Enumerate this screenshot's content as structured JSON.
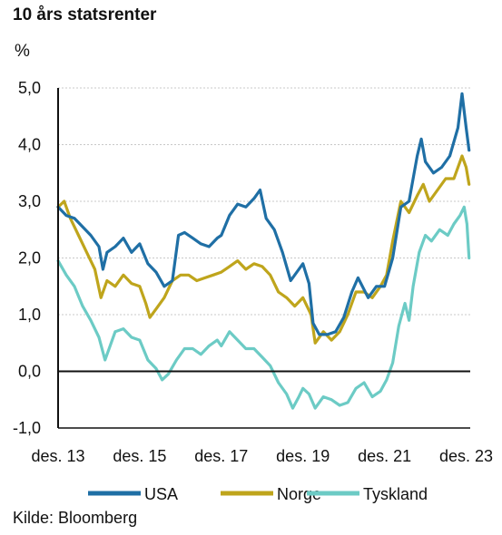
{
  "chart_data": {
    "type": "line",
    "title": "10 års statsrenter",
    "ylabel": "%",
    "xlabel": "",
    "ylim": [
      -1.0,
      5.0
    ],
    "yticks": [
      "5,0",
      "4,0",
      "3,0",
      "2,0",
      "1,0",
      "0,0",
      "-1,0"
    ],
    "ytick_values": [
      5,
      4,
      3,
      2,
      1,
      0,
      -1
    ],
    "xlim": [
      2013.9,
      2024.0
    ],
    "xticks": [
      "des. 13",
      "des. 15",
      "des. 17",
      "des. 19",
      "des. 21",
      "des. 23"
    ],
    "xtick_values": [
      2013.9,
      2015.9,
      2017.9,
      2019.9,
      2021.9,
      2023.9
    ],
    "grid": true,
    "legend_position": "bottom",
    "series": [
      {
        "name": "USA",
        "color": "#1f6fa5",
        "points": [
          [
            2013.9,
            2.9
          ],
          [
            2014.1,
            2.75
          ],
          [
            2014.3,
            2.7
          ],
          [
            2014.5,
            2.55
          ],
          [
            2014.7,
            2.4
          ],
          [
            2014.9,
            2.2
          ],
          [
            2015.0,
            1.8
          ],
          [
            2015.1,
            2.1
          ],
          [
            2015.3,
            2.2
          ],
          [
            2015.5,
            2.35
          ],
          [
            2015.7,
            2.1
          ],
          [
            2015.9,
            2.25
          ],
          [
            2016.1,
            1.9
          ],
          [
            2016.3,
            1.75
          ],
          [
            2016.5,
            1.5
          ],
          [
            2016.7,
            1.6
          ],
          [
            2016.85,
            2.4
          ],
          [
            2017.0,
            2.45
          ],
          [
            2017.2,
            2.35
          ],
          [
            2017.4,
            2.25
          ],
          [
            2017.6,
            2.2
          ],
          [
            2017.8,
            2.35
          ],
          [
            2017.9,
            2.4
          ],
          [
            2018.1,
            2.75
          ],
          [
            2018.3,
            2.95
          ],
          [
            2018.5,
            2.9
          ],
          [
            2018.7,
            3.05
          ],
          [
            2018.85,
            3.2
          ],
          [
            2019.0,
            2.7
          ],
          [
            2019.2,
            2.5
          ],
          [
            2019.4,
            2.1
          ],
          [
            2019.6,
            1.6
          ],
          [
            2019.8,
            1.8
          ],
          [
            2019.9,
            1.9
          ],
          [
            2020.05,
            1.55
          ],
          [
            2020.15,
            0.85
          ],
          [
            2020.3,
            0.65
          ],
          [
            2020.5,
            0.65
          ],
          [
            2020.7,
            0.7
          ],
          [
            2020.9,
            0.95
          ],
          [
            2021.1,
            1.4
          ],
          [
            2021.25,
            1.65
          ],
          [
            2021.5,
            1.3
          ],
          [
            2021.7,
            1.5
          ],
          [
            2021.9,
            1.5
          ],
          [
            2022.1,
            2.0
          ],
          [
            2022.3,
            2.9
          ],
          [
            2022.5,
            3.0
          ],
          [
            2022.7,
            3.8
          ],
          [
            2022.8,
            4.1
          ],
          [
            2022.9,
            3.7
          ],
          [
            2023.1,
            3.5
          ],
          [
            2023.3,
            3.6
          ],
          [
            2023.5,
            3.8
          ],
          [
            2023.7,
            4.3
          ],
          [
            2023.8,
            4.9
          ],
          [
            2023.9,
            4.3
          ],
          [
            2023.97,
            3.9
          ]
        ]
      },
      {
        "name": "Norge",
        "color": "#bfa51c",
        "points": [
          [
            2013.9,
            2.9
          ],
          [
            2014.05,
            3.0
          ],
          [
            2014.2,
            2.7
          ],
          [
            2014.4,
            2.4
          ],
          [
            2014.6,
            2.1
          ],
          [
            2014.8,
            1.8
          ],
          [
            2014.95,
            1.3
          ],
          [
            2015.1,
            1.6
          ],
          [
            2015.3,
            1.5
          ],
          [
            2015.5,
            1.7
          ],
          [
            2015.7,
            1.55
          ],
          [
            2015.9,
            1.5
          ],
          [
            2016.05,
            1.2
          ],
          [
            2016.15,
            0.95
          ],
          [
            2016.3,
            1.1
          ],
          [
            2016.5,
            1.3
          ],
          [
            2016.7,
            1.6
          ],
          [
            2016.9,
            1.7
          ],
          [
            2017.1,
            1.7
          ],
          [
            2017.3,
            1.6
          ],
          [
            2017.5,
            1.65
          ],
          [
            2017.7,
            1.7
          ],
          [
            2017.9,
            1.75
          ],
          [
            2018.1,
            1.85
          ],
          [
            2018.3,
            1.95
          ],
          [
            2018.5,
            1.8
          ],
          [
            2018.7,
            1.9
          ],
          [
            2018.9,
            1.85
          ],
          [
            2019.1,
            1.7
          ],
          [
            2019.3,
            1.4
          ],
          [
            2019.5,
            1.3
          ],
          [
            2019.7,
            1.15
          ],
          [
            2019.9,
            1.3
          ],
          [
            2020.1,
            1.0
          ],
          [
            2020.2,
            0.5
          ],
          [
            2020.4,
            0.7
          ],
          [
            2020.6,
            0.55
          ],
          [
            2020.8,
            0.7
          ],
          [
            2021.0,
            1.0
          ],
          [
            2021.2,
            1.4
          ],
          [
            2021.4,
            1.4
          ],
          [
            2021.6,
            1.3
          ],
          [
            2021.8,
            1.5
          ],
          [
            2021.95,
            1.7
          ],
          [
            2022.1,
            2.3
          ],
          [
            2022.3,
            3.0
          ],
          [
            2022.5,
            2.8
          ],
          [
            2022.7,
            3.1
          ],
          [
            2022.85,
            3.3
          ],
          [
            2023.0,
            3.0
          ],
          [
            2023.2,
            3.2
          ],
          [
            2023.4,
            3.4
          ],
          [
            2023.6,
            3.4
          ],
          [
            2023.8,
            3.8
          ],
          [
            2023.9,
            3.6
          ],
          [
            2023.97,
            3.3
          ]
        ]
      },
      {
        "name": "Tyskland",
        "color": "#6ccbc5",
        "points": [
          [
            2013.9,
            1.95
          ],
          [
            2014.1,
            1.7
          ],
          [
            2014.3,
            1.5
          ],
          [
            2014.5,
            1.15
          ],
          [
            2014.7,
            0.9
          ],
          [
            2014.9,
            0.6
          ],
          [
            2015.05,
            0.2
          ],
          [
            2015.15,
            0.4
          ],
          [
            2015.3,
            0.7
          ],
          [
            2015.5,
            0.75
          ],
          [
            2015.7,
            0.6
          ],
          [
            2015.9,
            0.55
          ],
          [
            2016.1,
            0.2
          ],
          [
            2016.3,
            0.05
          ],
          [
            2016.45,
            -0.15
          ],
          [
            2016.6,
            -0.05
          ],
          [
            2016.8,
            0.2
          ],
          [
            2017.0,
            0.4
          ],
          [
            2017.2,
            0.4
          ],
          [
            2017.4,
            0.3
          ],
          [
            2017.6,
            0.45
          ],
          [
            2017.8,
            0.55
          ],
          [
            2017.9,
            0.45
          ],
          [
            2018.1,
            0.7
          ],
          [
            2018.3,
            0.55
          ],
          [
            2018.5,
            0.4
          ],
          [
            2018.7,
            0.4
          ],
          [
            2018.9,
            0.25
          ],
          [
            2019.1,
            0.1
          ],
          [
            2019.3,
            -0.2
          ],
          [
            2019.5,
            -0.4
          ],
          [
            2019.65,
            -0.65
          ],
          [
            2019.8,
            -0.45
          ],
          [
            2019.9,
            -0.3
          ],
          [
            2020.05,
            -0.4
          ],
          [
            2020.2,
            -0.65
          ],
          [
            2020.4,
            -0.45
          ],
          [
            2020.6,
            -0.5
          ],
          [
            2020.8,
            -0.6
          ],
          [
            2021.0,
            -0.55
          ],
          [
            2021.2,
            -0.3
          ],
          [
            2021.4,
            -0.2
          ],
          [
            2021.6,
            -0.45
          ],
          [
            2021.8,
            -0.35
          ],
          [
            2021.95,
            -0.15
          ],
          [
            2022.1,
            0.15
          ],
          [
            2022.25,
            0.8
          ],
          [
            2022.4,
            1.2
          ],
          [
            2022.5,
            0.9
          ],
          [
            2022.6,
            1.5
          ],
          [
            2022.75,
            2.1
          ],
          [
            2022.9,
            2.4
          ],
          [
            2023.05,
            2.3
          ],
          [
            2023.25,
            2.5
          ],
          [
            2023.45,
            2.4
          ],
          [
            2023.6,
            2.6
          ],
          [
            2023.75,
            2.75
          ],
          [
            2023.85,
            2.9
          ],
          [
            2023.92,
            2.6
          ],
          [
            2023.97,
            2.0
          ]
        ]
      }
    ],
    "source": "Kilde: Bloomberg"
  }
}
